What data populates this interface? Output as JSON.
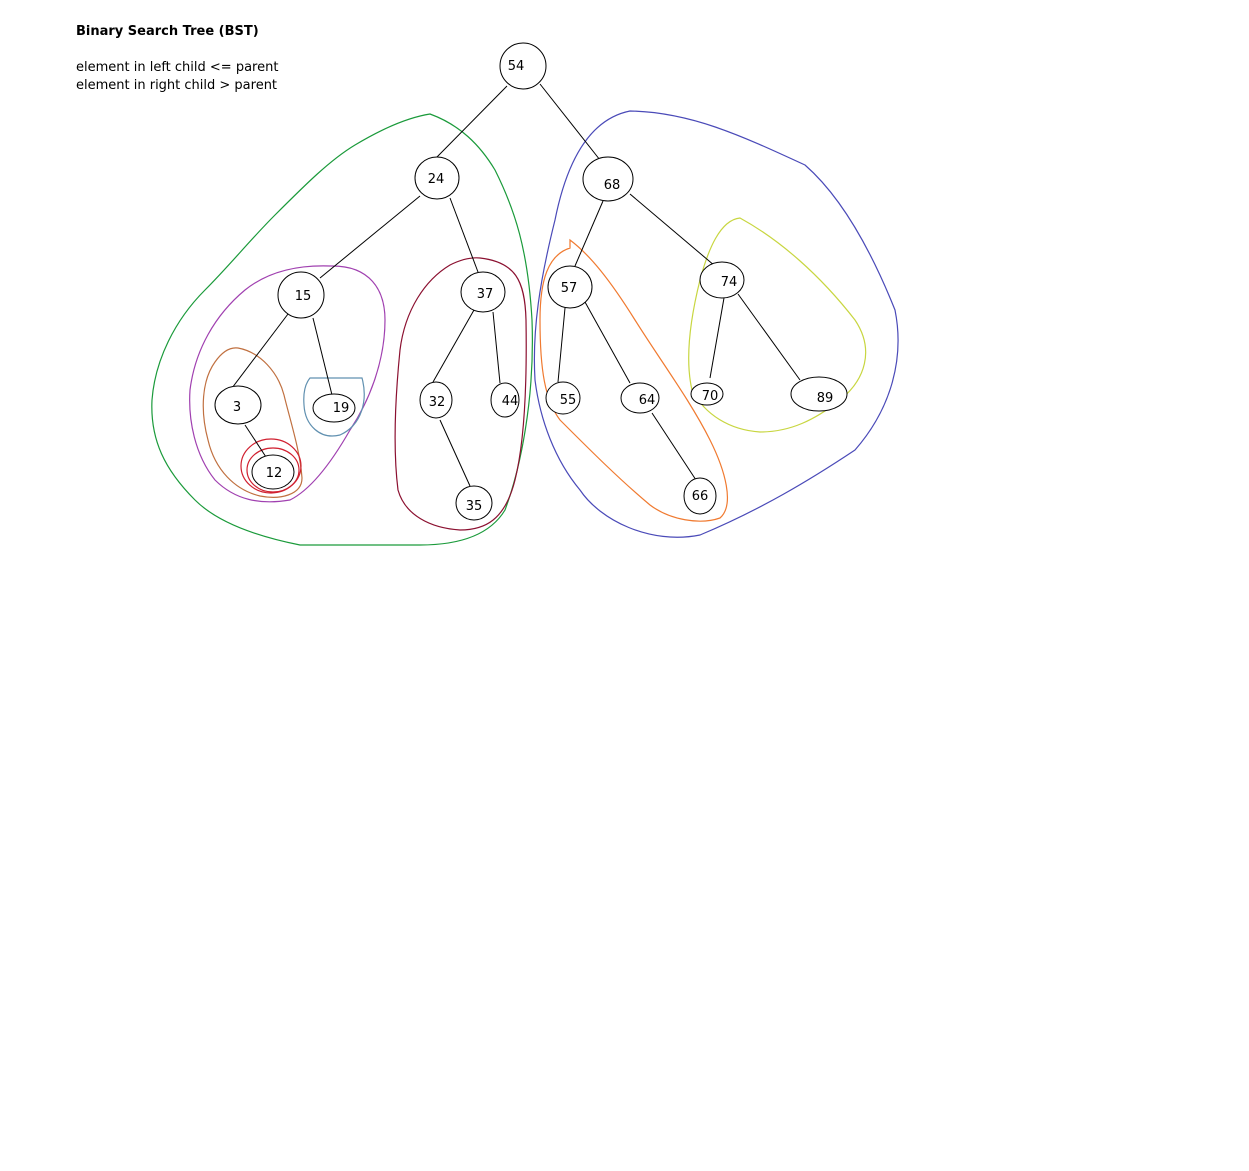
{
  "title": "Binary Search Tree (BST)",
  "rules": [
    "element in left child <= parent",
    "element in right child > parent"
  ],
  "tree": {
    "nodes": [
      {
        "id": "n54",
        "label": "54"
      },
      {
        "id": "n24",
        "label": "24"
      },
      {
        "id": "n68",
        "label": "68"
      },
      {
        "id": "n15",
        "label": "15"
      },
      {
        "id": "n37",
        "label": "37"
      },
      {
        "id": "n57",
        "label": "57"
      },
      {
        "id": "n74",
        "label": "74"
      },
      {
        "id": "n3",
        "label": "3"
      },
      {
        "id": "n19",
        "label": "19"
      },
      {
        "id": "n32",
        "label": "32"
      },
      {
        "id": "n44",
        "label": "44"
      },
      {
        "id": "n55",
        "label": "55"
      },
      {
        "id": "n64",
        "label": "64"
      },
      {
        "id": "n70",
        "label": "70"
      },
      {
        "id": "n89",
        "label": "89"
      },
      {
        "id": "n12",
        "label": "12"
      },
      {
        "id": "n35",
        "label": "35"
      },
      {
        "id": "n66",
        "label": "66"
      }
    ],
    "edges": [
      [
        "n54",
        "n24"
      ],
      [
        "n54",
        "n68"
      ],
      [
        "n24",
        "n15"
      ],
      [
        "n24",
        "n37"
      ],
      [
        "n68",
        "n57"
      ],
      [
        "n68",
        "n74"
      ],
      [
        "n15",
        "n3"
      ],
      [
        "n15",
        "n19"
      ],
      [
        "n37",
        "n32"
      ],
      [
        "n37",
        "n44"
      ],
      [
        "n57",
        "n55"
      ],
      [
        "n57",
        "n64"
      ],
      [
        "n74",
        "n70"
      ],
      [
        "n74",
        "n89"
      ],
      [
        "n3",
        "n12"
      ],
      [
        "n32",
        "n35"
      ],
      [
        "n64",
        "n66"
      ]
    ]
  },
  "colors": {
    "left_subtree_outline": "#1a9a3a",
    "right_subtree_outline": "#4a4ab8",
    "node15_subtree_outline": "#a040b0",
    "node37_subtree_outline": "#8b1030",
    "node3_subtree_outline": "#c07040",
    "node12_outline": "#d02030",
    "node19_outline": "#6090b0",
    "node57_subtree_outline": "#f07a30",
    "node74_subtree_outline": "#c8d640"
  }
}
